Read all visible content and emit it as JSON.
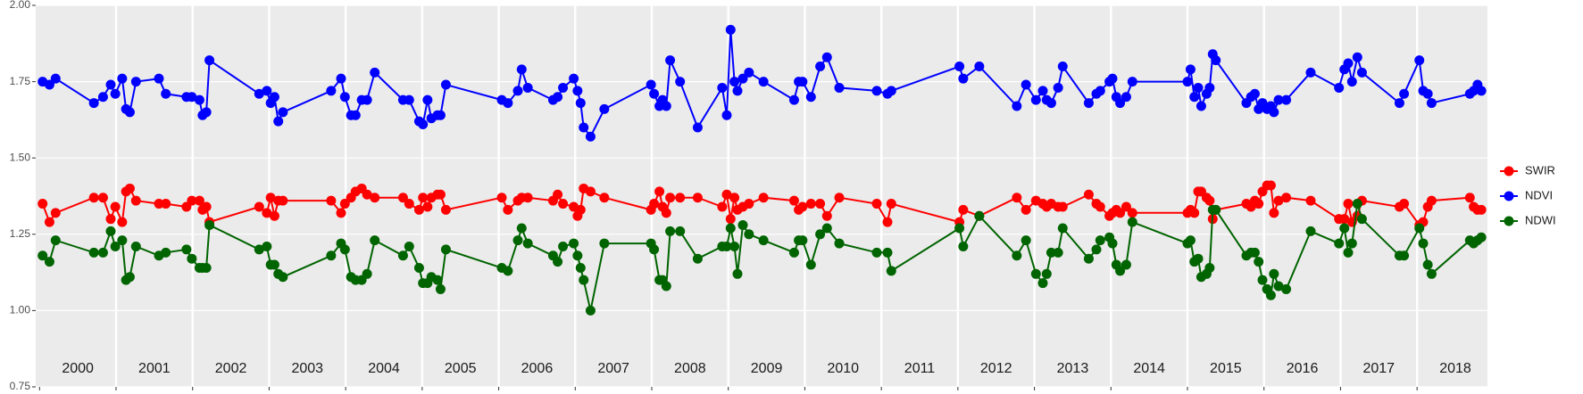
{
  "chart_data": {
    "type": "line",
    "x": [
      2000.04,
      2000.13,
      2000.21,
      2000.71,
      2000.83,
      2000.93,
      2000.99,
      2001.08,
      2001.13,
      2001.18,
      2001.26,
      2001.56,
      2001.65,
      2001.92,
      2001.99,
      2002.09,
      2002.13,
      2002.18,
      2002.22,
      2002.87,
      2002.97,
      2003.02,
      2003.07,
      2003.12,
      2003.18,
      2003.81,
      2003.94,
      2003.99,
      2004.07,
      2004.13,
      2004.21,
      2004.28,
      2004.38,
      2004.75,
      2004.83,
      2004.96,
      2005.01,
      2005.07,
      2005.12,
      2005.2,
      2005.24,
      2005.31,
      2006.04,
      2006.12,
      2006.25,
      2006.3,
      2006.38,
      2006.71,
      2006.77,
      2006.84,
      2006.98,
      2007.03,
      2007.07,
      2007.11,
      2007.2,
      2007.38,
      2007.99,
      2008.03,
      2008.1,
      2008.14,
      2008.19,
      2008.24,
      2008.37,
      2008.6,
      2008.92,
      2008.98,
      2009.03,
      2009.08,
      2009.12,
      2009.19,
      2009.27,
      2009.46,
      2009.86,
      2009.92,
      2009.97,
      2010.08,
      2010.2,
      2010.29,
      2010.45,
      2010.94,
      2011.08,
      2011.13,
      2012.02,
      2012.07,
      2012.28,
      2012.77,
      2012.89,
      2013.02,
      2013.11,
      2013.16,
      2013.22,
      2013.31,
      2013.37,
      2013.71,
      2013.81,
      2013.86,
      2013.98,
      2014.02,
      2014.07,
      2014.12,
      2014.2,
      2014.28,
      2015.0,
      2015.04,
      2015.09,
      2015.14,
      2015.18,
      2015.25,
      2015.29,
      2015.33,
      2015.37,
      2015.77,
      2015.83,
      2015.88,
      2015.93,
      2015.98,
      2016.04,
      2016.09,
      2016.13,
      2016.19,
      2016.29,
      2016.61,
      2016.98,
      2017.05,
      2017.1,
      2017.15,
      2017.22,
      2017.28,
      2017.77,
      2017.83,
      2018.03,
      2018.08,
      2018.14,
      2018.19,
      2018.69,
      2018.74,
      2018.79,
      2018.84
    ],
    "series": [
      {
        "name": "SWIR",
        "color": "#ff0000",
        "values": [
          1.35,
          1.29,
          1.32,
          1.37,
          1.37,
          1.3,
          1.34,
          1.29,
          1.39,
          1.4,
          1.36,
          1.35,
          1.35,
          1.34,
          1.36,
          1.36,
          1.33,
          1.34,
          1.29,
          1.34,
          1.32,
          1.37,
          1.31,
          1.36,
          1.36,
          1.36,
          1.32,
          1.35,
          1.37,
          1.39,
          1.4,
          1.38,
          1.37,
          1.37,
          1.35,
          1.33,
          1.37,
          1.34,
          1.37,
          1.38,
          1.38,
          1.33,
          1.37,
          1.33,
          1.36,
          1.37,
          1.37,
          1.36,
          1.38,
          1.35,
          1.34,
          1.31,
          1.33,
          1.4,
          1.39,
          1.37,
          1.33,
          1.35,
          1.39,
          1.34,
          1.32,
          1.37,
          1.37,
          1.37,
          1.34,
          1.38,
          1.3,
          1.37,
          1.33,
          1.34,
          1.35,
          1.37,
          1.36,
          1.33,
          1.34,
          1.35,
          1.35,
          1.31,
          1.37,
          1.35,
          1.29,
          1.35,
          1.29,
          1.33,
          1.31,
          1.37,
          1.33,
          1.36,
          1.35,
          1.34,
          1.35,
          1.34,
          1.34,
          1.38,
          1.35,
          1.34,
          1.31,
          1.32,
          1.33,
          1.32,
          1.34,
          1.32,
          1.32,
          1.33,
          1.32,
          1.39,
          1.39,
          1.37,
          1.36,
          1.3,
          1.33,
          1.35,
          1.34,
          1.36,
          1.35,
          1.39,
          1.41,
          1.41,
          1.32,
          1.36,
          1.37,
          1.36,
          1.3,
          1.3,
          1.35,
          1.29,
          1.31,
          1.36,
          1.34,
          1.35,
          1.28,
          1.29,
          1.34,
          1.36,
          1.37,
          1.34,
          1.33,
          1.33
        ]
      },
      {
        "name": "NDVI",
        "color": "#0000ff",
        "values": [
          1.75,
          1.74,
          1.76,
          1.68,
          1.7,
          1.74,
          1.71,
          1.76,
          1.66,
          1.65,
          1.75,
          1.76,
          1.71,
          1.7,
          1.7,
          1.69,
          1.64,
          1.65,
          1.82,
          1.71,
          1.72,
          1.68,
          1.7,
          1.62,
          1.65,
          1.72,
          1.76,
          1.7,
          1.64,
          1.64,
          1.69,
          1.69,
          1.78,
          1.69,
          1.69,
          1.62,
          1.61,
          1.69,
          1.63,
          1.64,
          1.64,
          1.74,
          1.69,
          1.68,
          1.72,
          1.79,
          1.73,
          1.69,
          1.7,
          1.73,
          1.76,
          1.72,
          1.68,
          1.6,
          1.57,
          1.66,
          1.74,
          1.71,
          1.67,
          1.69,
          1.67,
          1.82,
          1.75,
          1.6,
          1.73,
          1.64,
          1.92,
          1.75,
          1.72,
          1.76,
          1.78,
          1.75,
          1.69,
          1.75,
          1.75,
          1.7,
          1.8,
          1.83,
          1.73,
          1.72,
          1.71,
          1.72,
          1.8,
          1.76,
          1.8,
          1.67,
          1.74,
          1.69,
          1.72,
          1.69,
          1.68,
          1.73,
          1.8,
          1.68,
          1.71,
          1.72,
          1.75,
          1.76,
          1.7,
          1.68,
          1.7,
          1.75,
          1.75,
          1.79,
          1.7,
          1.73,
          1.67,
          1.71,
          1.73,
          1.84,
          1.82,
          1.68,
          1.7,
          1.71,
          1.66,
          1.68,
          1.66,
          1.67,
          1.65,
          1.69,
          1.69,
          1.78,
          1.73,
          1.79,
          1.81,
          1.75,
          1.83,
          1.78,
          1.68,
          1.71,
          1.82,
          1.72,
          1.71,
          1.68,
          1.71,
          1.72,
          1.74,
          1.72
        ]
      },
      {
        "name": "NDWI",
        "color": "#006400",
        "values": [
          1.18,
          1.16,
          1.23,
          1.19,
          1.19,
          1.26,
          1.21,
          1.23,
          1.1,
          1.11,
          1.21,
          1.18,
          1.19,
          1.2,
          1.17,
          1.14,
          1.14,
          1.14,
          1.28,
          1.2,
          1.21,
          1.15,
          1.15,
          1.12,
          1.11,
          1.18,
          1.22,
          1.2,
          1.11,
          1.1,
          1.1,
          1.12,
          1.23,
          1.18,
          1.21,
          1.14,
          1.09,
          1.09,
          1.11,
          1.1,
          1.07,
          1.2,
          1.14,
          1.13,
          1.23,
          1.27,
          1.22,
          1.18,
          1.16,
          1.21,
          1.22,
          1.18,
          1.14,
          1.1,
          1.0,
          1.22,
          1.22,
          1.2,
          1.1,
          1.1,
          1.08,
          1.26,
          1.26,
          1.17,
          1.21,
          1.21,
          1.27,
          1.21,
          1.12,
          1.28,
          1.25,
          1.23,
          1.19,
          1.23,
          1.23,
          1.15,
          1.25,
          1.27,
          1.22,
          1.19,
          1.19,
          1.13,
          1.27,
          1.21,
          1.31,
          1.18,
          1.23,
          1.12,
          1.09,
          1.12,
          1.19,
          1.19,
          1.27,
          1.17,
          1.2,
          1.23,
          1.24,
          1.22,
          1.15,
          1.13,
          1.15,
          1.29,
          1.22,
          1.23,
          1.16,
          1.17,
          1.11,
          1.12,
          1.14,
          1.33,
          1.33,
          1.18,
          1.19,
          1.19,
          1.16,
          1.1,
          1.07,
          1.05,
          1.12,
          1.08,
          1.07,
          1.26,
          1.22,
          1.27,
          1.19,
          1.22,
          1.35,
          1.3,
          1.18,
          1.18,
          1.27,
          1.22,
          1.15,
          1.12,
          1.23,
          1.22,
          1.23,
          1.24
        ]
      }
    ],
    "xlim": [
      1999.95,
      2018.92
    ],
    "xticks": [
      2000,
      2001,
      2002,
      2003,
      2004,
      2005,
      2006,
      2007,
      2008,
      2009,
      2010,
      2011,
      2012,
      2013,
      2014,
      2015,
      2016,
      2017,
      2018
    ],
    "ylim": [
      0.75,
      2.0
    ],
    "yticks": [
      {
        "value": 0.75,
        "label": "0.75"
      },
      {
        "value": 1.0,
        "label": "1.00"
      },
      {
        "value": 1.25,
        "label": "1.25"
      },
      {
        "value": 1.5,
        "label": "1.50"
      },
      {
        "value": 1.75,
        "label": "1.75"
      },
      {
        "value": 2.0,
        "label": "2.00"
      }
    ],
    "grid": true,
    "legend": "right"
  }
}
